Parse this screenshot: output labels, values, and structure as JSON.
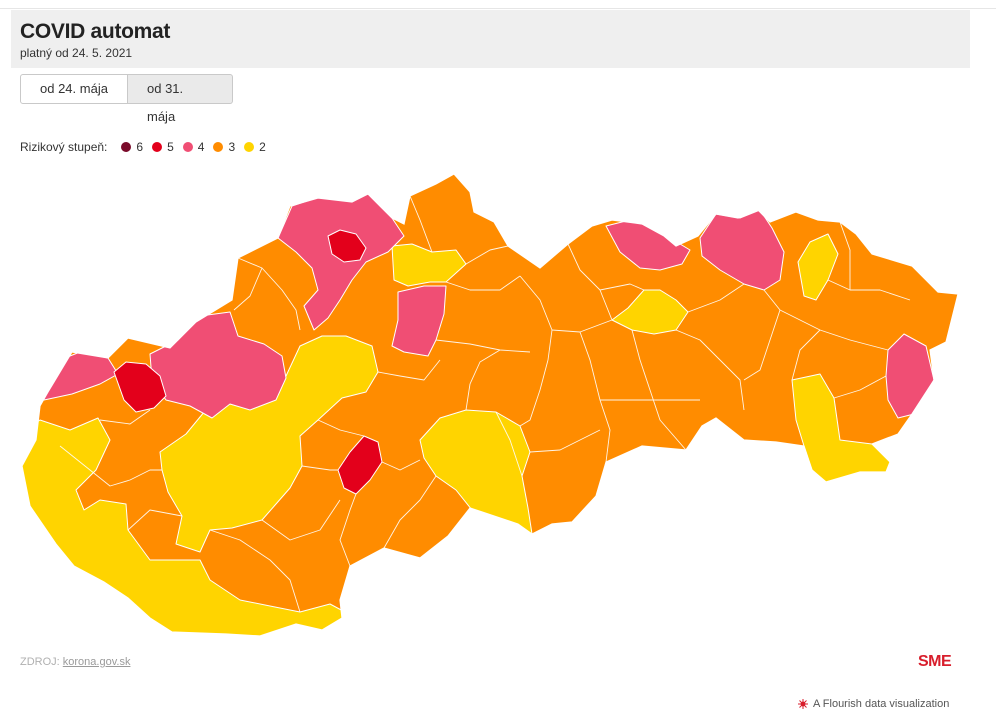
{
  "header": {
    "title": "COVID automat",
    "subtitle": "platný od 24. 5. 2021"
  },
  "tabs": [
    {
      "label": "od 24. mája",
      "active": true
    },
    {
      "label": "od 31. mája",
      "active": false
    }
  ],
  "legend": {
    "title": "Rizikový stupeň:",
    "items": [
      {
        "label": "6",
        "color": "#7a0a2a"
      },
      {
        "label": "5",
        "color": "#e3001b"
      },
      {
        "label": "4",
        "color": "#f04e74"
      },
      {
        "label": "3",
        "color": "#ff8c00"
      },
      {
        "label": "2",
        "color": "#ffd400"
      }
    ]
  },
  "source": {
    "prefix": "ZDROJ: ",
    "link": "korona.gov.sk"
  },
  "logo": "SME",
  "credit": "A Flourish data visualization",
  "colors": {
    "level6": "#7a0a2a",
    "level5": "#e3001b",
    "level4": "#f04e74",
    "level3": "#ff8c00",
    "level2": "#ffd400",
    "district_border": "#ffffff"
  }
}
